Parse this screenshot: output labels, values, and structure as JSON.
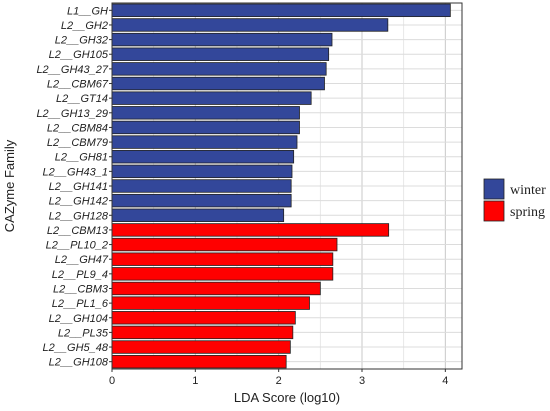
{
  "chart_data": {
    "type": "bar",
    "orientation": "horizontal",
    "xlabel": "LDA Score (log10)",
    "ylabel": "CAZyme Family",
    "xlim": [
      0,
      4.2
    ],
    "xticks": [
      "0",
      "1",
      "2",
      "3",
      "4"
    ],
    "grid": true,
    "legend_position": "right",
    "series": [
      {
        "name": "winter",
        "color": "#33479a",
        "categories": [
          "L1__GH",
          "L2__GH2",
          "L2__GH32",
          "L2__GH105",
          "L2__GH43_27",
          "L2__CBM67",
          "L2__GT14",
          "L2__GH13_29",
          "L2__CBM84",
          "L2__CBM79",
          "L2__GH81",
          "L2__GH43_1",
          "L2__GH141",
          "L2__GH142",
          "L2__GH128"
        ],
        "values": [
          4.06,
          3.31,
          2.64,
          2.6,
          2.57,
          2.55,
          2.39,
          2.25,
          2.25,
          2.22,
          2.18,
          2.16,
          2.15,
          2.15,
          2.06
        ]
      },
      {
        "name": "spring",
        "color": "#ff0000",
        "categories": [
          "L2__CBM13",
          "L2__PL10_2",
          "L2__GH47",
          "L2__PL9_4",
          "L2__CBM3",
          "L2__PL1_6",
          "L2__GH104",
          "L2__PL35",
          "L2__GH5_48",
          "L2__GH108"
        ],
        "values": [
          3.32,
          2.7,
          2.65,
          2.65,
          2.5,
          2.37,
          2.2,
          2.17,
          2.14,
          2.09
        ]
      }
    ]
  }
}
